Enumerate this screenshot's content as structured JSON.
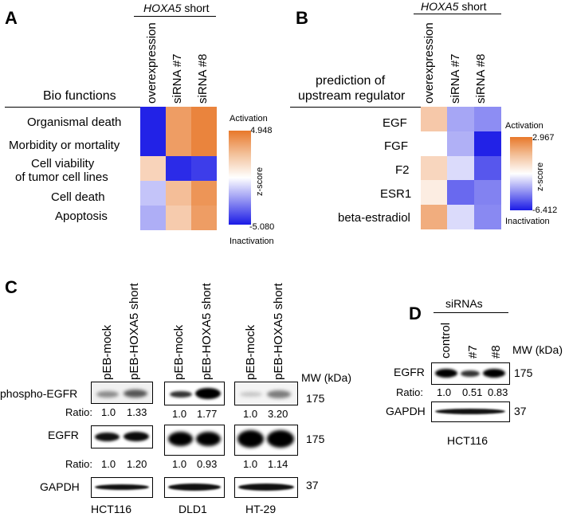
{
  "colors": {
    "activation": "#e8782a",
    "inactivation": "#1a1ae6",
    "neutral": "#ffffff"
  },
  "panel_a": {
    "letter": "A",
    "group_label_italic": "HOXA5",
    "group_label_rest": " short",
    "row_header": "Bio functions",
    "columns": [
      "overexpression",
      "siRNA #7",
      "siRNA #8"
    ],
    "rows": [
      {
        "label": "Organismal death",
        "values": [
          -4.9,
          3.6,
          4.5
        ]
      },
      {
        "label": "Morbidity or mortality",
        "values": [
          -4.9,
          3.6,
          4.5
        ]
      },
      {
        "label_line1": "Cell viability",
        "label_line2": "of tumor cell lines",
        "values": [
          1.6,
          -4.7,
          -4.3
        ]
      },
      {
        "label": "Cell death",
        "values": [
          -1.3,
          2.4,
          3.9
        ]
      },
      {
        "label": "Apoptosis",
        "values": [
          -1.8,
          1.9,
          3.6
        ]
      }
    ],
    "legend": {
      "top": "Activation",
      "max": "4.948",
      "axis": "z-score",
      "min": "-5.080",
      "bottom": "Inactivation"
    }
  },
  "panel_b": {
    "letter": "B",
    "group_label_italic": "HOXA5",
    "group_label_rest": " short",
    "row_header_line1": "prediction of",
    "row_header_line2": "upstream regulator",
    "columns": [
      "overexpression",
      "siRNA #7",
      "siRNA #8"
    ],
    "rows": [
      {
        "label": "EGF",
        "values": [
          1.2,
          -2.5,
          -3.2
        ]
      },
      {
        "label": "FGF",
        "values": [
          0.0,
          -2.2,
          -6.2
        ]
      },
      {
        "label": "F2",
        "values": [
          0.9,
          -1.0,
          -4.7
        ]
      },
      {
        "label": "ESR1",
        "values": [
          0.4,
          -4.2,
          -3.5
        ]
      },
      {
        "label": "beta-estradiol",
        "values": [
          1.8,
          -1.0,
          -3.3
        ]
      }
    ],
    "legend": {
      "top": "Activation",
      "max": "2.967",
      "axis": "z-score",
      "min": "-6.412",
      "bottom": "Inactivation"
    }
  },
  "panel_c": {
    "letter": "C",
    "lane_labels": [
      "pEB-mock",
      "pEB-HOXA5 short"
    ],
    "mw_header": "MW (kDa)",
    "rows": [
      {
        "label": "phospho-EGFR",
        "mw": "175"
      },
      {
        "label": "EGFR",
        "mw": "175"
      },
      {
        "label": "GAPDH",
        "mw": "37"
      }
    ],
    "ratio_label": "Ratio:",
    "cell_lines": [
      {
        "name": "HCT116",
        "phospho_ratio": [
          "1.0",
          "1.33"
        ],
        "egfr_ratio": [
          "1.0",
          "1.20"
        ]
      },
      {
        "name": "DLD1",
        "phospho_ratio": [
          "1.0",
          "1.77"
        ],
        "egfr_ratio": [
          "1.0",
          "0.93"
        ]
      },
      {
        "name": "HT-29",
        "phospho_ratio": [
          "1.0",
          "3.20"
        ],
        "egfr_ratio": [
          "1.0",
          "1.14"
        ]
      }
    ]
  },
  "panel_d": {
    "letter": "D",
    "group_label": "siRNAs",
    "lane_labels": [
      "control",
      "#7",
      "#8"
    ],
    "mw_header": "MW (kDa)",
    "rows": [
      {
        "label": "EGFR",
        "mw": "175"
      },
      {
        "label": "GAPDH",
        "mw": "37"
      }
    ],
    "ratio_label": "Ratio:",
    "ratios": [
      "1.0",
      "0.51",
      "0.83"
    ],
    "cell_line": "HCT116"
  }
}
